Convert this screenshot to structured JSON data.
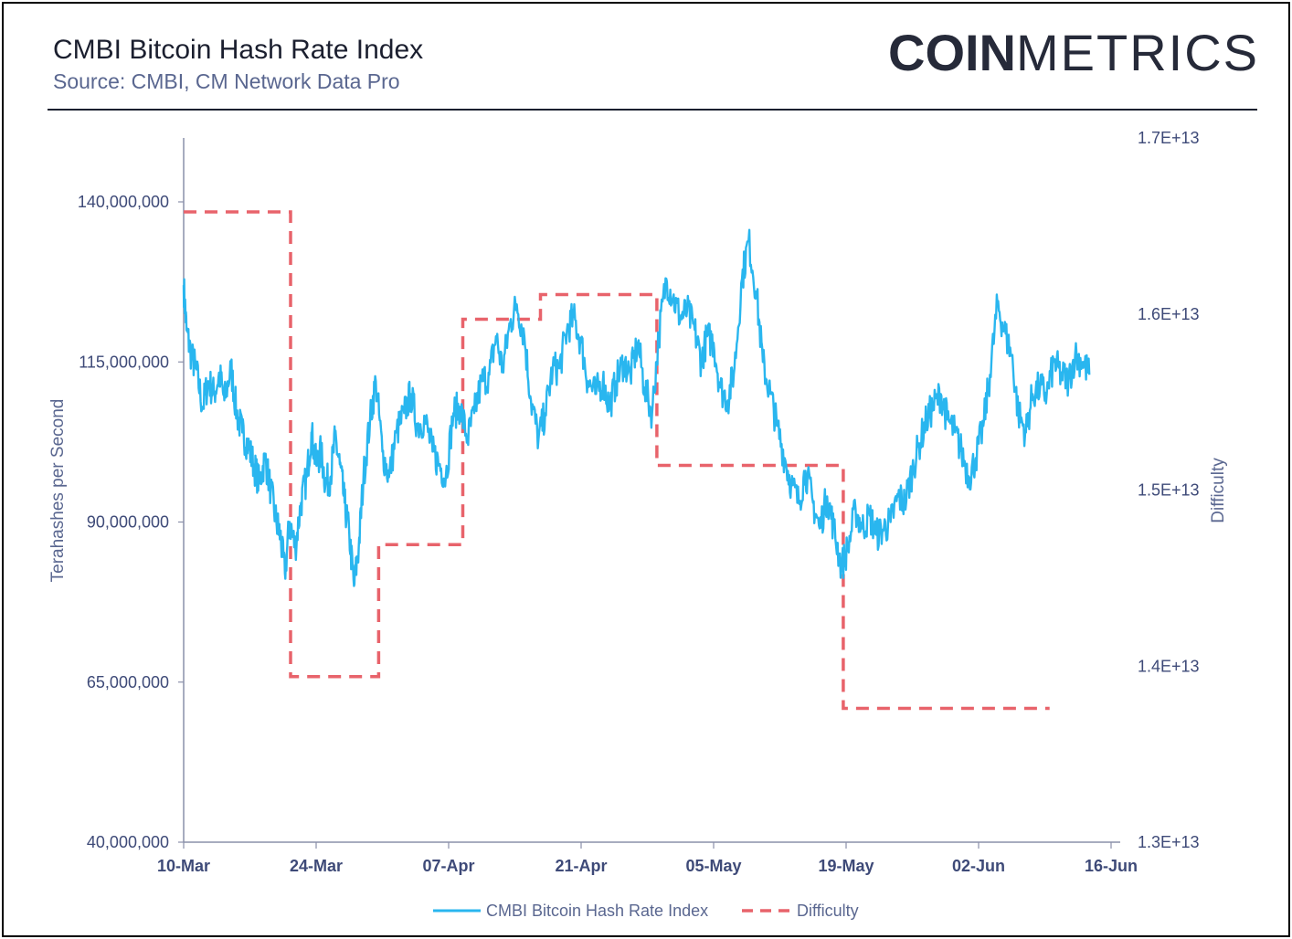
{
  "header": {
    "title": "CMBI Bitcoin Hash Rate Index",
    "subtitle": "Source: CMBI, CM Network Data Pro",
    "logo_bold": "COIN",
    "logo_light": "METRICS"
  },
  "colors": {
    "hash_rate": "#29b6ef",
    "difficulty": "#e8636b",
    "axis_text": "#3e4a78",
    "axis_line": "#8a90aa"
  },
  "chart_data": {
    "type": "line",
    "xlabel": "",
    "ylabel_left": "Terahashes per Second",
    "ylabel_right": "Difficulty",
    "x_ticks": [
      "10-Mar",
      "24-Mar",
      "07-Apr",
      "21-Apr",
      "05-May",
      "19-May",
      "02-Jun",
      "16-Jun"
    ],
    "x_range_days": [
      0,
      98
    ],
    "ylim_left": [
      40000000,
      150000000
    ],
    "ylim_right": [
      13000000000000,
      17000000000000
    ],
    "left_ticks": [
      "40,000,000",
      "65,000,000",
      "90,000,000",
      "115,000,000",
      "140,000,000"
    ],
    "left_tick_values": [
      40000000,
      65000000,
      90000000,
      115000000,
      140000000
    ],
    "right_ticks": [
      "1.3E+13",
      "1.4E+13",
      "1.5E+13",
      "1.6E+13",
      "1.7E+13"
    ],
    "right_tick_values": [
      13000000000000,
      14000000000000,
      15000000000000,
      16000000000000,
      17000000000000
    ],
    "legend": [
      "CMBI Bitcoin Hash Rate Index",
      "Difficulty"
    ],
    "series": [
      {
        "name": "CMBI Bitcoin Hash Rate Index",
        "x_day": [
          0,
          0.3,
          0.8,
          1.3,
          2.0,
          2.6,
          3.2,
          3.8,
          4.3,
          5.0,
          5.6,
          6.2,
          6.8,
          7.4,
          8.0,
          8.6,
          9.2,
          9.8,
          10.2,
          10.7,
          11.2,
          11.8,
          12.4,
          13.0,
          13.5,
          14.0,
          14.5,
          15.0,
          15.5,
          16.0,
          16.5,
          17.0,
          17.5,
          18.0,
          18.5,
          19.0,
          19.7,
          20.3,
          21.0,
          21.7,
          22.5,
          23.3,
          24.0,
          24.7,
          25.5,
          26.3,
          27.0,
          27.7,
          28.5,
          29.2,
          30.0,
          30.7,
          31.5,
          32.3,
          33.0,
          33.7,
          34.5,
          35.2,
          36.0,
          36.7,
          37.5,
          38.2,
          39.0,
          39.7,
          40.5,
          41.2,
          42.0,
          42.7,
          43.5,
          44.3,
          45.0,
          45.7,
          46.5,
          47.2,
          48.0,
          48.7,
          49.5,
          50.2,
          51.0,
          51.7,
          52.5,
          53.2,
          54.0,
          54.7,
          55.3,
          56.0,
          56.7,
          57.5,
          58.2,
          59.0,
          59.7,
          60.5,
          61.2,
          62.0,
          62.7,
          63.5,
          64.2,
          65.0,
          65.7,
          66.5,
          67.2,
          68.0,
          68.7,
          69.5,
          70.2,
          71.0,
          71.7,
          72.5,
          73.2,
          74.0,
          74.7,
          75.5,
          76.2,
          77.0,
          77.7,
          78.5,
          79.2,
          80.0,
          80.7,
          81.5,
          82.2,
          83.0,
          83.7,
          84.5,
          85.2,
          86.0,
          86.7,
          87.5,
          88.2,
          89.0,
          89.7,
          90.5,
          91.2,
          92.0,
          92.7,
          93.5,
          94.2,
          95.0,
          95.7
        ],
        "y_mhs": [
          127,
          120,
          116,
          114,
          108,
          112,
          110,
          113,
          109,
          114,
          107,
          104,
          102,
          99,
          96,
          100,
          95,
          90,
          88,
          82,
          90,
          86,
          93,
          97,
          104,
          99,
          101,
          96,
          97,
          103,
          99,
          93,
          88,
          80,
          86,
          97,
          106,
          112,
          101,
          97,
          104,
          107,
          110,
          105,
          106,
          101,
          99,
          97,
          107,
          108,
          103,
          107,
          112,
          113,
          119,
          114,
          121,
          124,
          119,
          109,
          103,
          107,
          114,
          114,
          120,
          122,
          118,
          112,
          110,
          112,
          108,
          112,
          115,
          113,
          118,
          111,
          107,
          119,
          128,
          125,
          122,
          123,
          120,
          115,
          119,
          118,
          111,
          109,
          114,
          128,
          134,
          126,
          115,
          110,
          105,
          100,
          96,
          93,
          98,
          93,
          89,
          94,
          89,
          83,
          86,
          92,
          89,
          91,
          88,
          89,
          90,
          94,
          93,
          98,
          102,
          106,
          108,
          110,
          106,
          104,
          101,
          97,
          100,
          105,
          113,
          124,
          120,
          116,
          107,
          104,
          110,
          111,
          110,
          115,
          113,
          112,
          116,
          115,
          113
        ]
      },
      {
        "name": "Difficulty",
        "x_day": [
          0,
          11.3,
          11.3,
          20.6,
          20.6,
          29.5,
          29.5,
          37.7,
          37.7,
          50.0,
          50.0,
          60.0,
          60.0,
          69.7,
          69.7,
          77.3,
          77.3,
          91.5
        ],
        "y_difficulty_t": [
          16.58,
          16.58,
          13.94,
          13.94,
          14.69,
          14.69,
          15.97,
          15.97,
          16.11,
          16.11,
          15.14,
          15.14,
          15.14,
          15.14,
          13.76,
          13.76,
          13.76,
          13.76
        ]
      }
    ]
  }
}
